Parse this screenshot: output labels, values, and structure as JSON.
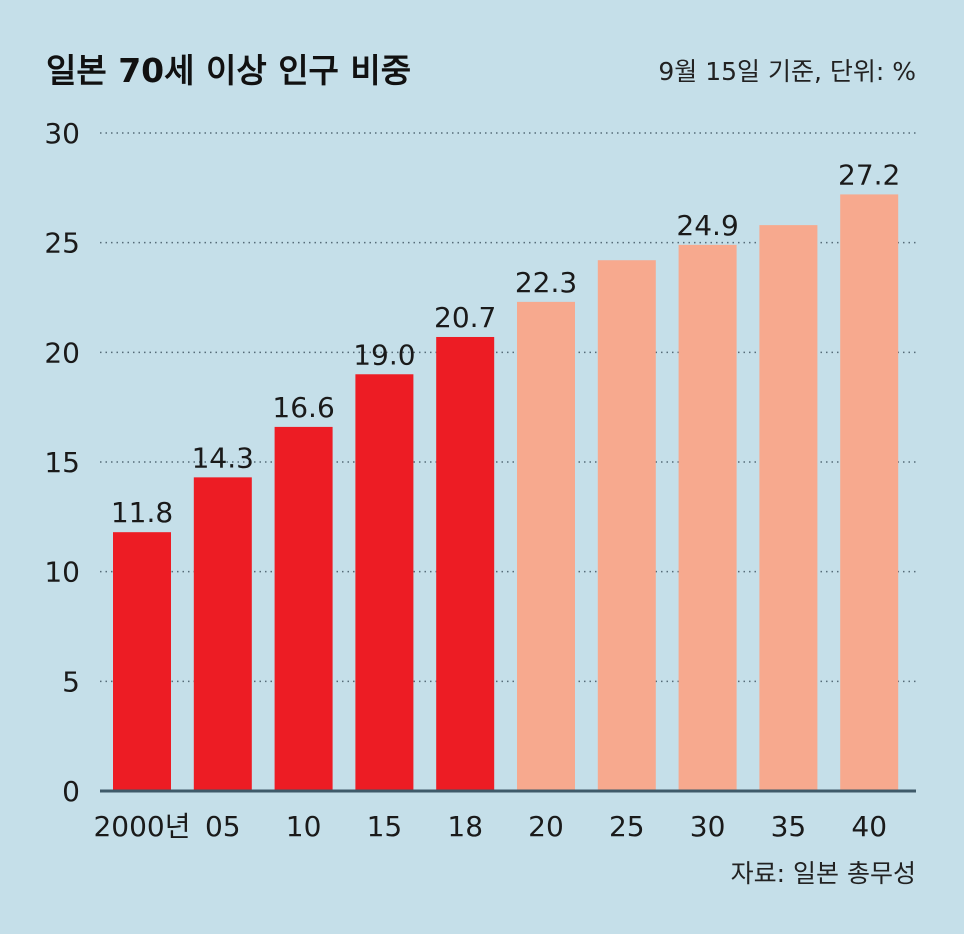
{
  "chart_data": {
    "type": "bar",
    "title": "일본 70세 이상 인구 비중",
    "subtitle": "9월 15일 기준, 단위: %",
    "source": "자료: 일본 총무성",
    "categories": [
      "2000년",
      "05",
      "10",
      "15",
      "18",
      "20",
      "25",
      "30",
      "35",
      "40"
    ],
    "values": [
      11.8,
      14.3,
      16.6,
      19.0,
      20.7,
      22.3,
      24.2,
      24.9,
      25.8,
      27.2
    ],
    "data_labels": [
      "11.8",
      "14.3",
      "16.6",
      "19.0",
      "20.7",
      "22.3",
      "",
      "24.9",
      "",
      "27.2"
    ],
    "ylim": [
      0,
      30
    ],
    "yticks": [
      "0",
      "5",
      "10",
      "15",
      "20",
      "25",
      "30"
    ],
    "grid": true,
    "colors": {
      "actual": "#ed1c24",
      "projected": "#f7a98e",
      "background": "#c5dfe9"
    },
    "actual_count": 5
  }
}
